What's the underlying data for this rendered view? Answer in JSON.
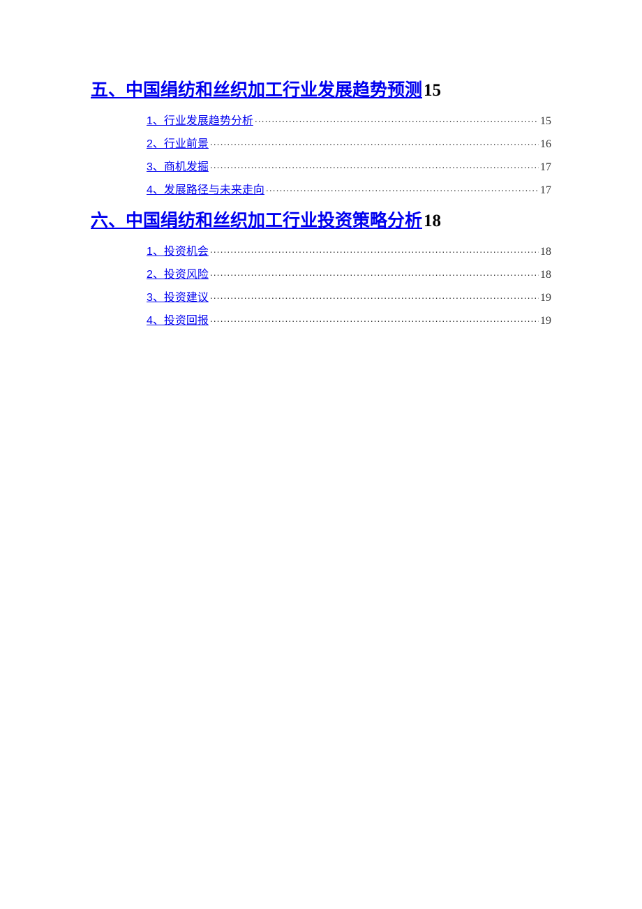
{
  "sections": [
    {
      "heading": "五、中国绢纺和丝织加工行业发展趋势预测",
      "page": "15",
      "items": [
        {
          "label": "1、行业发展趋势分析",
          "page": "15"
        },
        {
          "label": "2、行业前景",
          "page": "16"
        },
        {
          "label": "3、商机发掘",
          "page": "17"
        },
        {
          "label": "4、发展路径与未来走向",
          "page": "17"
        }
      ]
    },
    {
      "heading": "六、中国绢纺和丝织加工行业投资策略分析",
      "page": "18",
      "items": [
        {
          "label": "1、投资机会",
          "page": "18"
        },
        {
          "label": "2、投资风险",
          "page": "18"
        },
        {
          "label": "3、投资建议",
          "page": "19"
        },
        {
          "label": "4、投资回报",
          "page": "19"
        }
      ]
    }
  ],
  "colors": {
    "link": "#0000ee",
    "text": "#333333",
    "background": "#ffffff"
  }
}
